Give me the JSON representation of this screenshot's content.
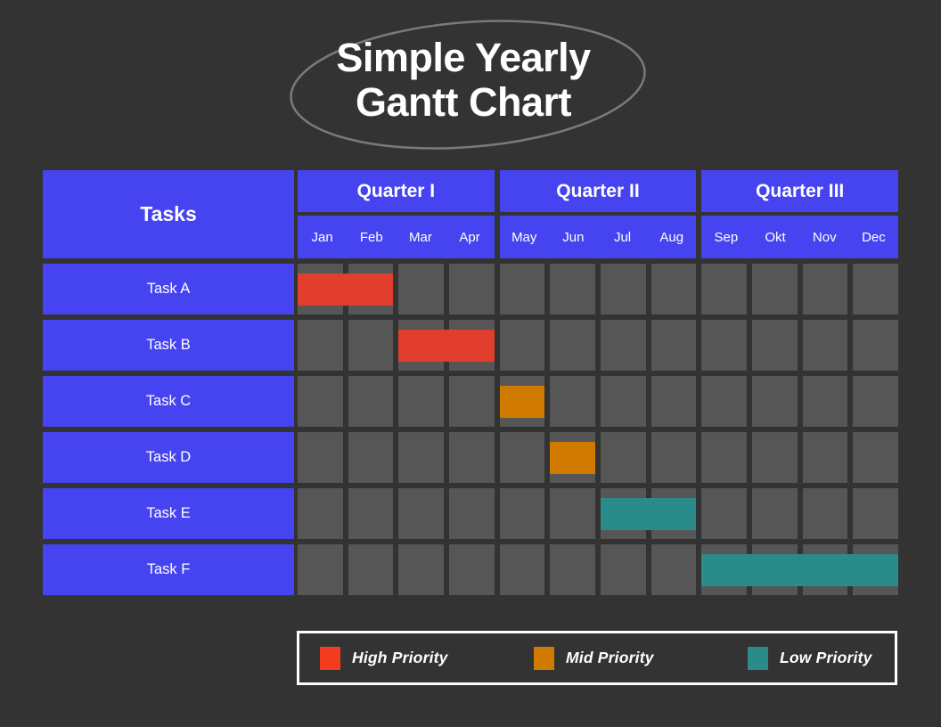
{
  "title": {
    "line1": "Simple Yearly",
    "line2": "Gantt Chart"
  },
  "colors": {
    "background": "#333333",
    "blue": "#4644F0",
    "cell": "#565656",
    "high": "#E23E2D",
    "mid": "#D07A00",
    "low": "#2A8B8B",
    "legend_high": "#F23D20",
    "ellipse_stroke": "#7A7A7A",
    "legend_border": "#FFFFFF",
    "text": "#FFFFFF"
  },
  "table": {
    "tasks_header": "Tasks",
    "quarters": [
      {
        "label": "Quarter I",
        "months": [
          "Jan",
          "Feb",
          "Mar",
          "Apr"
        ]
      },
      {
        "label": "Quarter II",
        "months": [
          "May",
          "Jun",
          "Jul",
          "Aug"
        ]
      },
      {
        "label": "Quarter III",
        "months": [
          "Sep",
          "Okt",
          "Nov",
          "Dec"
        ]
      }
    ]
  },
  "chart_data": {
    "type": "gantt",
    "title": "Simple Yearly Gantt Chart",
    "x_categories": [
      "Jan",
      "Feb",
      "Mar",
      "Apr",
      "May",
      "Jun",
      "Jul",
      "Aug",
      "Sep",
      "Okt",
      "Nov",
      "Dec"
    ],
    "quarter_groups": [
      "Quarter I",
      "Quarter II",
      "Quarter III"
    ],
    "tasks": [
      {
        "label": "Task A",
        "start": 1,
        "end": 2,
        "start_month": "Jan",
        "end_month": "Feb",
        "priority": "high"
      },
      {
        "label": "Task B",
        "start": 3,
        "end": 4,
        "start_month": "Mar",
        "end_month": "Apr",
        "priority": "high"
      },
      {
        "label": "Task C",
        "start": 5,
        "end": 5,
        "start_month": "May",
        "end_month": "May",
        "priority": "mid"
      },
      {
        "label": "Task D",
        "start": 6,
        "end": 6,
        "start_month": "Jun",
        "end_month": "Jun",
        "priority": "mid"
      },
      {
        "label": "Task E",
        "start": 7,
        "end": 8,
        "start_month": "Jul",
        "end_month": "Aug",
        "priority": "low"
      },
      {
        "label": "Task F",
        "start": 9,
        "end": 12,
        "start_month": "Sep",
        "end_month": "Dec",
        "priority": "low"
      }
    ],
    "legend_position": "bottom"
  },
  "legend": [
    {
      "label": "High Priority",
      "color": "#F23D20",
      "priority": "high"
    },
    {
      "label": "Mid Priority",
      "color": "#D07A00",
      "priority": "mid"
    },
    {
      "label": "Low Priority",
      "color": "#2A8B8B",
      "priority": "low"
    }
  ]
}
